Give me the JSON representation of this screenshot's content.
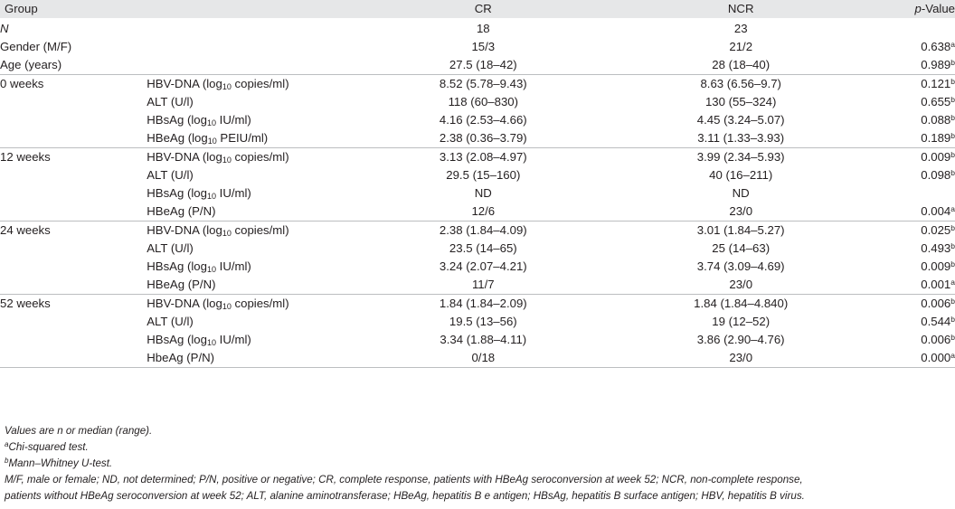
{
  "header": {
    "group": "Group",
    "cr": "CR",
    "ncr": "NCR",
    "p_prefix": "p",
    "p_suffix": "-Value"
  },
  "top_rows": [
    {
      "label": "N",
      "cr": "18",
      "ncr": "23",
      "p": "",
      "sup": ""
    },
    {
      "label": "Gender (M/F)",
      "cr": "15/3",
      "ncr": "21/2",
      "p": "0.638",
      "sup": "a"
    },
    {
      "label": "Age (years)",
      "cr": "27.5 (18–42)",
      "ncr": "28 (18–40)",
      "p": "0.989",
      "sup": "b"
    }
  ],
  "blocks": [
    {
      "time": "0 weeks",
      "rows": [
        {
          "param": "HBV-DNA",
          "unit_pre": "(log",
          "unit_sub": "10",
          "unit_post": " copies/ml)",
          "cr": "8.52 (5.78–9.43)",
          "ncr": "8.63 (6.56–9.7)",
          "p": "0.121",
          "sup": "b"
        },
        {
          "param": "ALT (U/l)",
          "unit_pre": "",
          "unit_sub": "",
          "unit_post": "",
          "cr": "118 (60–830)",
          "ncr": "130 (55–324)",
          "p": "0.655",
          "sup": "b"
        },
        {
          "param": "HBsAg",
          "unit_pre": "(log",
          "unit_sub": "10",
          "unit_post": " IU/ml)",
          "cr": "4.16 (2.53–4.66)",
          "ncr": "4.45 (3.24–5.07)",
          "p": "0.088",
          "sup": "b"
        },
        {
          "param": "HBeAg",
          "unit_pre": "(log",
          "unit_sub": "10",
          "unit_post": " PEIU/ml)",
          "cr": "2.38 (0.36–3.79)",
          "ncr": "3.11 (1.33–3.93)",
          "p": "0.189",
          "sup": "b"
        }
      ]
    },
    {
      "time": "12 weeks",
      "rows": [
        {
          "param": "HBV-DNA",
          "unit_pre": "(log",
          "unit_sub": "10",
          "unit_post": " copies/ml)",
          "cr": "3.13 (2.08–4.97)",
          "ncr": "3.99 (2.34–5.93)",
          "p": "0.009",
          "sup": "b"
        },
        {
          "param": "ALT (U/l)",
          "unit_pre": "",
          "unit_sub": "",
          "unit_post": "",
          "cr": "29.5 (15–160)",
          "ncr": "40 (16–211)",
          "p": "0.098",
          "sup": "b"
        },
        {
          "param": "HBsAg",
          "unit_pre": "(log",
          "unit_sub": "10",
          "unit_post": " IU/ml)",
          "cr": "ND",
          "ncr": "ND",
          "p": "",
          "sup": ""
        },
        {
          "param": "HBeAg (P/N)",
          "unit_pre": "",
          "unit_sub": "",
          "unit_post": "",
          "cr": "12/6",
          "ncr": "23/0",
          "p": "0.004",
          "sup": "a"
        }
      ]
    },
    {
      "time": "24 weeks",
      "rows": [
        {
          "param": "HBV-DNA",
          "unit_pre": "(log",
          "unit_sub": "10",
          "unit_post": " copies/ml)",
          "cr": "2.38 (1.84–4.09)",
          "ncr": "3.01 (1.84–5.27)",
          "p": "0.025",
          "sup": "b"
        },
        {
          "param": "ALT (U/l)",
          "unit_pre": "",
          "unit_sub": "",
          "unit_post": "",
          "cr": "23.5 (14–65)",
          "ncr": "25 (14–63)",
          "p": "0.493",
          "sup": "b"
        },
        {
          "param": "HBsAg",
          "unit_pre": "(log",
          "unit_sub": "10",
          "unit_post": " IU/ml)",
          "cr": "3.24 (2.07–4.21)",
          "ncr": "3.74 (3.09–4.69)",
          "p": "0.009",
          "sup": "b"
        },
        {
          "param": "HBeAg (P/N)",
          "unit_pre": "",
          "unit_sub": "",
          "unit_post": "",
          "cr": "11/7",
          "ncr": "23/0",
          "p": "0.001",
          "sup": "a"
        }
      ]
    },
    {
      "time": "52 weeks",
      "rows": [
        {
          "param": "HBV-DNA",
          "unit_pre": "(log",
          "unit_sub": "10",
          "unit_post": " copies/ml)",
          "cr": "1.84 (1.84–2.09)",
          "ncr": "1.84 (1.84–4.840)",
          "p": "0.006",
          "sup": "b"
        },
        {
          "param": "ALT (U/l)",
          "unit_pre": "",
          "unit_sub": "",
          "unit_post": "",
          "cr": "19.5 (13–56)",
          "ncr": "19 (12–52)",
          "p": "0.544",
          "sup": "b"
        },
        {
          "param": "HBsAg",
          "unit_pre": "(log",
          "unit_sub": "10",
          "unit_post": " IU/ml)",
          "cr": "3.34 (1.88–4.11)",
          "ncr": "3.86 (2.90–4.76)",
          "p": "0.006",
          "sup": "b"
        },
        {
          "param": "HbeAg (P/N)",
          "unit_pre": "",
          "unit_sub": "",
          "unit_post": "",
          "cr": "0/18",
          "ncr": "23/0",
          "p": "0.000",
          "sup": "a"
        }
      ]
    }
  ],
  "footnotes": {
    "values": "Values are n or median (range).",
    "a_mark": "a",
    "a_text": "Chi-squared test.",
    "b_mark": "b",
    "b_text": "Mann–Whitney U-test.",
    "abbrev_1": "M/F, male or female; ND, not determined; P/N, positive or negative; CR, complete response, patients with HBeAg seroconversion at week 52; NCR, non-complete response,",
    "abbrev_2": "patients without HBeAg seroconversion at week 52; ALT, alanine aminotransferase; HBeAg, hepatitis B e antigen; HBsAg, hepatitis B surface antigen; HBV, hepatitis B virus."
  },
  "colors": {
    "header_bg": "#e6e7e8",
    "rule": "#bcbec0",
    "text": "#231f20"
  }
}
